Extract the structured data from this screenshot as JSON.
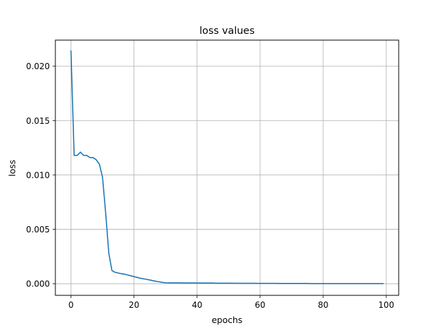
{
  "chart_data": {
    "type": "line",
    "title": "loss values",
    "xlabel": "epochs",
    "ylabel": "loss",
    "xlim": [
      -4.95,
      103.95
    ],
    "ylim": [
      -0.00107,
      0.0224
    ],
    "xticks": [
      0,
      20,
      40,
      60,
      80,
      100
    ],
    "xtick_labels": [
      "0",
      "20",
      "40",
      "60",
      "80",
      "100"
    ],
    "yticks": [
      0.0,
      0.005,
      0.01,
      0.015,
      0.02
    ],
    "ytick_labels": [
      "0.000",
      "0.005",
      "0.010",
      "0.015",
      "0.020"
    ],
    "grid": true,
    "legend": "none",
    "series": [
      {
        "color": "#1f77b4",
        "x": [
          0,
          1,
          2,
          3,
          4,
          5,
          6,
          7,
          8,
          9,
          10,
          11,
          12,
          13,
          14,
          15,
          16,
          17,
          18,
          19,
          20,
          21,
          22,
          23,
          24,
          25,
          26,
          27,
          28,
          29,
          30,
          31,
          32,
          33,
          34,
          35,
          36,
          37,
          38,
          39,
          40,
          41,
          42,
          43,
          44,
          45,
          46,
          47,
          48,
          49,
          50,
          51,
          52,
          53,
          54,
          55,
          56,
          57,
          58,
          59,
          60,
          61,
          62,
          63,
          64,
          65,
          66,
          67,
          68,
          69,
          70,
          71,
          72,
          73,
          74,
          75,
          76,
          77,
          78,
          79,
          80,
          81,
          82,
          83,
          84,
          85,
          86,
          87,
          88,
          89,
          90,
          91,
          92,
          93,
          94,
          95,
          96,
          97,
          98,
          99
        ],
        "y": [
          0.0214,
          0.0118,
          0.0118,
          0.0121,
          0.0118,
          0.0118,
          0.0116,
          0.0116,
          0.0114,
          0.011,
          0.0098,
          0.0065,
          0.0028,
          0.0012,
          0.00105,
          0.00098,
          0.00092,
          0.00088,
          0.0008,
          0.00073,
          0.00065,
          0.00058,
          0.0005,
          0.00045,
          0.0004,
          0.00034,
          0.00028,
          0.00022,
          0.00017,
          0.00012,
          9e-05,
          8e-05,
          8e-05,
          8e-05,
          8e-05,
          7e-05,
          7e-05,
          7e-05,
          7e-05,
          7e-05,
          6e-05,
          6e-05,
          6e-05,
          6e-05,
          6e-05,
          6e-05,
          5e-05,
          5e-05,
          5e-05,
          5e-05,
          5e-05,
          5e-05,
          4e-05,
          4e-05,
          4e-05,
          4e-05,
          4e-05,
          4e-05,
          4e-05,
          3e-05,
          3e-05,
          3e-05,
          3e-05,
          3e-05,
          3e-05,
          3e-05,
          2e-05,
          2e-05,
          2e-05,
          2e-05,
          2e-05,
          2e-05,
          2e-05,
          2e-05,
          2e-05,
          2e-05,
          1e-05,
          1e-05,
          1e-05,
          1e-05,
          1e-05,
          1e-05,
          1e-05,
          1e-05,
          1e-05,
          1e-05,
          1e-05,
          1e-05,
          1e-05,
          1e-05,
          1e-05,
          1e-05,
          1e-05,
          1e-05,
          1e-05,
          1e-05,
          1e-05,
          1e-05,
          1e-05,
          1e-05
        ]
      }
    ]
  }
}
